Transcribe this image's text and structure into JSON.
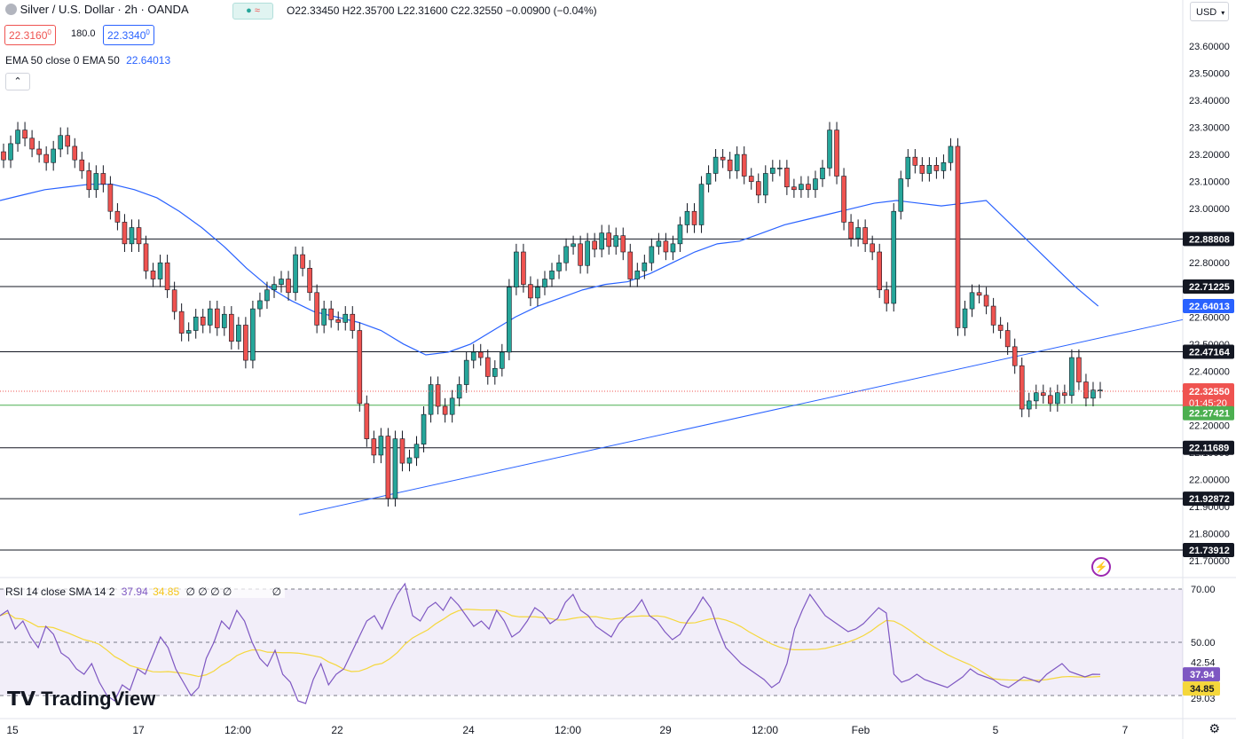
{
  "header": {
    "symbol": "Silver / U.S. Dollar · 2h · OANDA",
    "ohlc": "O22.33450 H22.35700 L22.31600 C22.32550 −0.00900 (−0.04%)",
    "sell_price": "22.3160",
    "sell_price_sup": "0",
    "spread": "180.0",
    "buy_price": "22.3340",
    "buy_price_sup": "0",
    "ema_label": "EMA 50 close 0 EMA 50",
    "ema_value": "22.64013",
    "currency": "USD",
    "rsi_label": "RSI 14 close SMA 14 2",
    "rsi_value": "37.94",
    "rsi_sma_value": "34.85",
    "rsi_extra": "∅ ∅ ∅ ∅",
    "rsi_extra2": "∅"
  },
  "logo_text": "TradingView",
  "colors": {
    "up": "#26a69a",
    "down": "#ef5350",
    "ema": "#2962ff",
    "rsi": "#7e57c2",
    "rsi_sma": "#f5d73b",
    "green_line": "#4caf50",
    "current": "#ef5350"
  },
  "chart_data": {
    "type": "candlestick",
    "price_axis": {
      "ticks": [
        "23.60000",
        "23.50000",
        "23.40000",
        "23.30000",
        "23.20000",
        "23.10000",
        "23.00000",
        "22.90000",
        "22.80000",
        "22.70000",
        "22.60000",
        "22.50000",
        "22.40000",
        "22.30000",
        "22.20000",
        "22.10000",
        "22.00000",
        "21.90000",
        "21.80000",
        "21.70000"
      ],
      "range": [
        21.66,
        23.72
      ]
    },
    "x_axis": {
      "labels": [
        "15",
        "17",
        "12:00",
        "22",
        "24",
        "12:00",
        "29",
        "12:00",
        "Feb",
        "5",
        "7"
      ]
    },
    "levels": [
      "22.88808",
      "22.71225",
      "22.47164",
      "22.11689",
      "21.92872",
      "21.73912"
    ],
    "ema_marker": "22.64013",
    "support_level": "22.27421",
    "current_price": "22.32550",
    "countdown": "01:45:20",
    "trendline": {
      "from": 21.87,
      "to": 22.59
    },
    "candles": [
      [
        23.21,
        23.18
      ],
      [
        23.18,
        23.24
      ],
      [
        23.24,
        23.29
      ],
      [
        23.29,
        23.26
      ],
      [
        23.26,
        23.22
      ],
      [
        23.22,
        23.2
      ],
      [
        23.2,
        23.17
      ],
      [
        23.17,
        23.22
      ],
      [
        23.22,
        23.27
      ],
      [
        23.27,
        23.23
      ],
      [
        23.23,
        23.18
      ],
      [
        23.18,
        23.14
      ],
      [
        23.14,
        23.07
      ],
      [
        23.07,
        23.13
      ],
      [
        23.13,
        23.09
      ],
      [
        23.09,
        22.99
      ],
      [
        22.99,
        22.95
      ],
      [
        22.95,
        22.87
      ],
      [
        22.87,
        22.93
      ],
      [
        22.93,
        22.87
      ],
      [
        22.87,
        22.77
      ],
      [
        22.77,
        22.74
      ],
      [
        22.74,
        22.8
      ],
      [
        22.8,
        22.7
      ],
      [
        22.7,
        22.62
      ],
      [
        22.62,
        22.54
      ],
      [
        22.54,
        22.55
      ],
      [
        22.55,
        22.6
      ],
      [
        22.6,
        22.57
      ],
      [
        22.57,
        22.63
      ],
      [
        22.63,
        22.56
      ],
      [
        22.56,
        22.61
      ],
      [
        22.61,
        22.51
      ],
      [
        22.51,
        22.57
      ],
      [
        22.57,
        22.44
      ],
      [
        22.44,
        22.63
      ],
      [
        22.63,
        22.66
      ],
      [
        22.66,
        22.7
      ],
      [
        22.7,
        22.72
      ],
      [
        22.72,
        22.74
      ],
      [
        22.74,
        22.69
      ],
      [
        22.69,
        22.83
      ],
      [
        22.83,
        22.78
      ],
      [
        22.78,
        22.69
      ],
      [
        22.69,
        22.57
      ],
      [
        22.57,
        22.63
      ],
      [
        22.63,
        22.59
      ],
      [
        22.59,
        22.58
      ],
      [
        22.58,
        22.61
      ],
      [
        22.61,
        22.55
      ],
      [
        22.55,
        22.28
      ],
      [
        22.28,
        22.15
      ],
      [
        22.15,
        22.09
      ],
      [
        22.09,
        22.16
      ],
      [
        22.16,
        21.93
      ],
      [
        21.93,
        22.15
      ],
      [
        22.15,
        22.06
      ],
      [
        22.06,
        22.08
      ],
      [
        22.08,
        22.13
      ],
      [
        22.13,
        22.24
      ],
      [
        22.24,
        22.35
      ],
      [
        22.35,
        22.27
      ],
      [
        22.27,
        22.24
      ],
      [
        22.24,
        22.3
      ],
      [
        22.3,
        22.35
      ],
      [
        22.35,
        22.44
      ],
      [
        22.44,
        22.47
      ],
      [
        22.47,
        22.45
      ],
      [
        22.45,
        22.38
      ],
      [
        22.38,
        22.41
      ],
      [
        22.41,
        22.47
      ],
      [
        22.47,
        22.71
      ],
      [
        22.71,
        22.84
      ],
      [
        22.84,
        22.72
      ],
      [
        22.72,
        22.67
      ],
      [
        22.67,
        22.71
      ],
      [
        22.71,
        22.74
      ],
      [
        22.74,
        22.77
      ],
      [
        22.77,
        22.8
      ],
      [
        22.8,
        22.86
      ],
      [
        22.86,
        22.87
      ],
      [
        22.87,
        22.79
      ],
      [
        22.79,
        22.88
      ],
      [
        22.88,
        22.85
      ],
      [
        22.85,
        22.91
      ],
      [
        22.91,
        22.86
      ],
      [
        22.86,
        22.9
      ],
      [
        22.9,
        22.84
      ],
      [
        22.84,
        22.74
      ],
      [
        22.74,
        22.77
      ],
      [
        22.77,
        22.8
      ],
      [
        22.8,
        22.86
      ],
      [
        22.86,
        22.88
      ],
      [
        22.88,
        22.84
      ],
      [
        22.84,
        22.87
      ],
      [
        22.87,
        22.94
      ],
      [
        22.94,
        22.99
      ],
      [
        22.99,
        22.94
      ],
      [
        22.94,
        23.09
      ],
      [
        23.09,
        23.13
      ],
      [
        23.13,
        23.19
      ],
      [
        23.19,
        23.18
      ],
      [
        23.18,
        23.14
      ],
      [
        23.14,
        23.2
      ],
      [
        23.2,
        23.12
      ],
      [
        23.12,
        23.1
      ],
      [
        23.1,
        23.05
      ],
      [
        23.05,
        23.13
      ],
      [
        23.13,
        23.15
      ],
      [
        23.15,
        23.15
      ],
      [
        23.15,
        23.08
      ],
      [
        23.08,
        23.07
      ],
      [
        23.07,
        23.09
      ],
      [
        23.09,
        23.07
      ],
      [
        23.07,
        23.11
      ],
      [
        23.11,
        23.15
      ],
      [
        23.15,
        23.29
      ],
      [
        23.29,
        23.12
      ],
      [
        23.12,
        22.95
      ],
      [
        22.95,
        22.89
      ],
      [
        22.89,
        22.93
      ],
      [
        22.93,
        22.87
      ],
      [
        22.87,
        22.84
      ],
      [
        22.84,
        22.7
      ],
      [
        22.7,
        22.65
      ],
      [
        22.65,
        22.99
      ],
      [
        22.99,
        23.11
      ],
      [
        23.11,
        23.19
      ],
      [
        23.19,
        23.16
      ],
      [
        23.16,
        23.13
      ],
      [
        23.13,
        23.16
      ],
      [
        23.16,
        23.14
      ],
      [
        23.14,
        23.17
      ],
      [
        23.17,
        23.23
      ],
      [
        23.23,
        22.56
      ],
      [
        22.56,
        22.63
      ],
      [
        22.63,
        22.69
      ],
      [
        22.69,
        22.68
      ],
      [
        22.68,
        22.64
      ],
      [
        22.64,
        22.57
      ],
      [
        22.57,
        22.55
      ],
      [
        22.55,
        22.49
      ],
      [
        22.49,
        22.42
      ],
      [
        22.42,
        22.26
      ],
      [
        22.26,
        22.29
      ],
      [
        22.29,
        22.32
      ],
      [
        22.32,
        22.31
      ],
      [
        22.31,
        22.28
      ],
      [
        22.28,
        22.32
      ],
      [
        22.32,
        22.31
      ],
      [
        22.31,
        22.45
      ],
      [
        22.45,
        22.36
      ],
      [
        22.36,
        22.3
      ],
      [
        22.3,
        22.33
      ],
      [
        22.33,
        22.33
      ]
    ],
    "ema": [
      23.03,
      23.05,
      23.07,
      23.08,
      23.09,
      23.09,
      23.07,
      23.04,
      22.99,
      22.93,
      22.86,
      22.78,
      22.71,
      22.66,
      22.62,
      22.6,
      22.58,
      22.55,
      22.5,
      22.46,
      22.47,
      22.5,
      22.55,
      22.6,
      22.64,
      22.67,
      22.7,
      22.72,
      22.73,
      22.76,
      22.8,
      22.84,
      22.87,
      22.88,
      22.91,
      22.94,
      22.96,
      22.98,
      23.0,
      23.02,
      23.03,
      23.02,
      23.01,
      23.02,
      23.03,
      22.95,
      22.87,
      22.79,
      22.71,
      22.64
    ],
    "ema_x": [
      0,
      30,
      60,
      90,
      120,
      150,
      180,
      210,
      240,
      270,
      300,
      330,
      360,
      390,
      420,
      450,
      480,
      510,
      540,
      570,
      600,
      630,
      660,
      690,
      720,
      750,
      780,
      810,
      840,
      870,
      900,
      930,
      960,
      990,
      1020,
      1050,
      1080,
      1110,
      1140,
      1170,
      1200,
      1230,
      1260,
      1290,
      1320,
      1350,
      1380,
      1410,
      1440,
      1470
    ],
    "rsi": {
      "axis_ticks": [
        "70.00",
        "50.00",
        "42.54",
        "29.03"
      ],
      "levels": [
        70,
        50,
        30
      ],
      "value_label": "37.94",
      "sma_label": "34.85",
      "values": [
        60,
        62,
        55,
        58,
        52,
        48,
        56,
        53,
        46,
        44,
        40,
        38,
        42,
        35,
        30,
        28,
        34,
        32,
        40,
        38,
        45,
        52,
        48,
        40,
        35,
        30,
        33,
        44,
        50,
        58,
        55,
        62,
        58,
        50,
        44,
        41,
        47,
        38,
        35,
        28,
        27,
        36,
        42,
        34,
        38,
        40,
        46,
        52,
        58,
        60,
        55,
        62,
        68,
        72,
        60,
        58,
        63,
        65,
        62,
        67,
        64,
        60,
        56,
        58,
        55,
        62,
        58,
        52,
        54,
        58,
        63,
        61,
        57,
        59,
        65,
        68,
        62,
        60,
        56,
        54,
        52,
        57,
        60,
        62,
        66,
        60,
        58,
        54,
        51,
        53,
        58,
        62,
        67,
        63,
        55,
        48,
        45,
        42,
        40,
        38,
        36,
        33,
        35,
        42,
        55,
        62,
        68,
        64,
        60,
        58,
        56,
        54,
        55,
        57,
        60,
        63,
        61,
        38,
        35,
        36,
        38,
        36,
        35,
        34,
        33,
        35,
        37,
        40,
        38,
        37,
        36,
        34,
        33,
        35,
        37,
        36,
        35,
        38,
        40,
        42,
        39,
        38,
        37,
        38,
        37.94
      ]
    }
  }
}
